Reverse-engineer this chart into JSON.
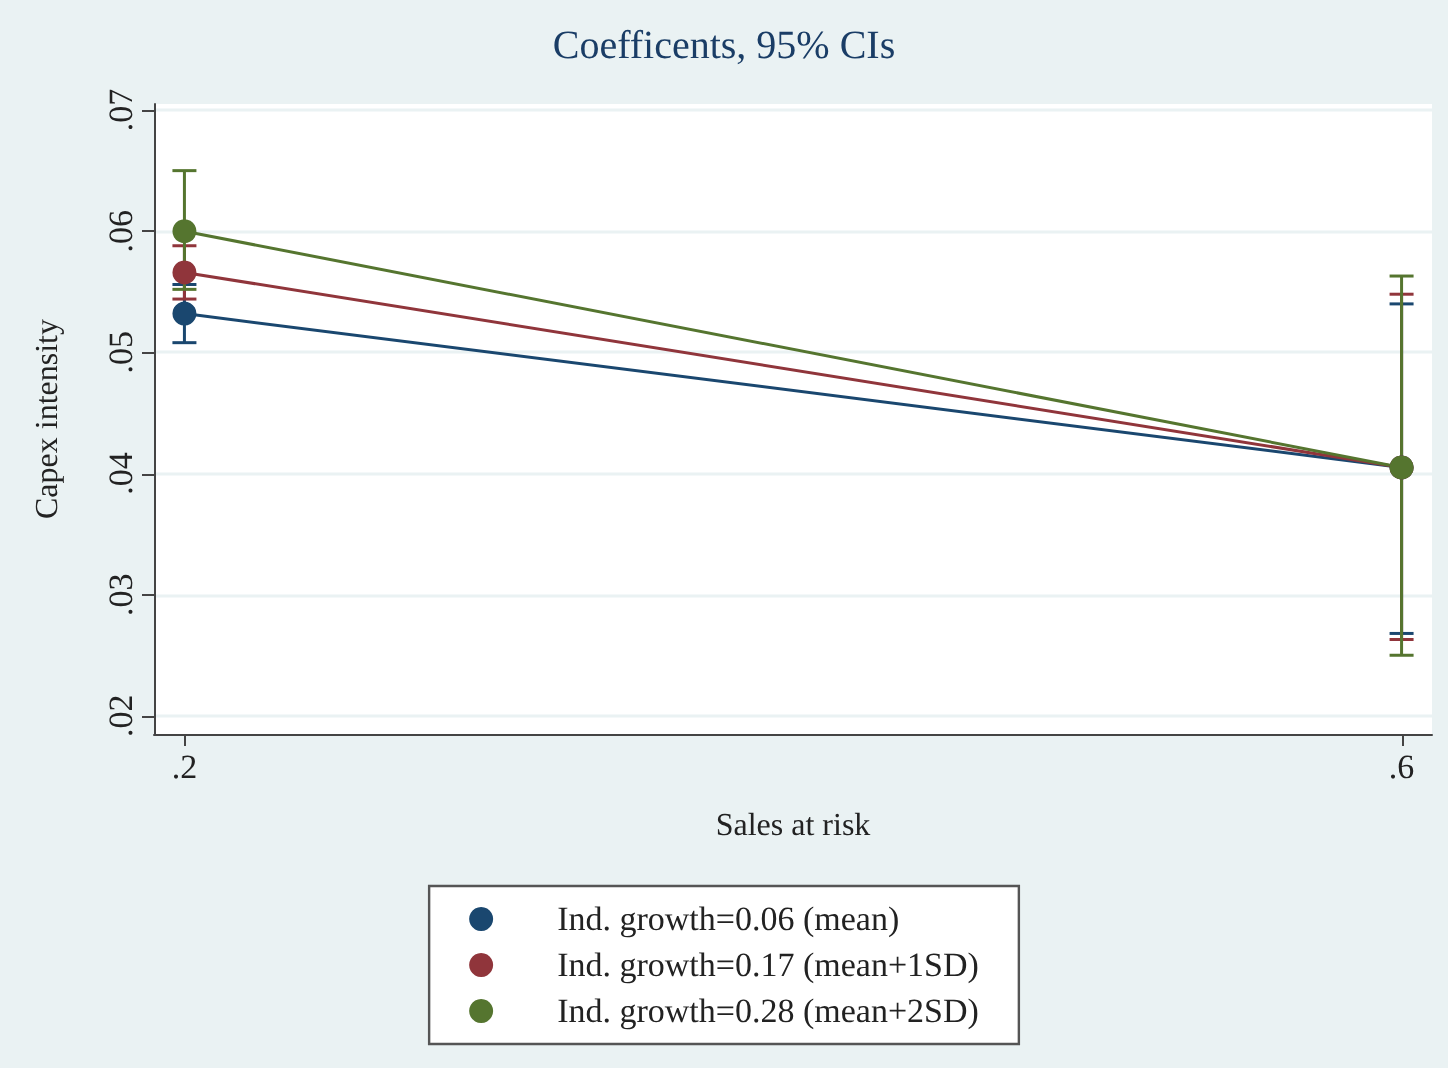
{
  "chart_data": {
    "type": "line",
    "title": "Coefficents, 95% CIs",
    "xlabel": "Sales at risk",
    "ylabel": "Capex intensity",
    "xlim": [
      0.19,
      0.61
    ],
    "xticks": [
      {
        "value": 0.2,
        "label": ".2"
      },
      {
        "value": 0.6,
        "label": ".6"
      }
    ],
    "ylim": [
      0.0185,
      0.0705
    ],
    "yticks": [
      {
        "value": 0.02,
        "label": ".02"
      },
      {
        "value": 0.03,
        "label": ".03"
      },
      {
        "value": 0.04,
        "label": ".04"
      },
      {
        "value": 0.05,
        "label": ".05"
      },
      {
        "value": 0.06,
        "label": ".06"
      },
      {
        "value": 0.07,
        "label": ".07"
      }
    ],
    "x": [
      0.2,
      0.6
    ],
    "series": [
      {
        "name": "Ind. growth=0.06 (mean)",
        "color": "#1a476f",
        "values": [
          0.0532,
          0.0405
        ],
        "errors": [
          [
            0.0508,
            0.0556
          ],
          [
            0.0268,
            0.054
          ]
        ]
      },
      {
        "name": "Ind. growth=0.17 (mean+1SD)",
        "color": "#90353b",
        "values": [
          0.0566,
          0.0405
        ],
        "errors": [
          [
            0.0544,
            0.0588
          ],
          [
            0.0263,
            0.0548
          ]
        ]
      },
      {
        "name": "Ind. growth=0.28 (mean+2SD)",
        "color": "#55752f",
        "values": [
          0.06,
          0.0405
        ],
        "errors": [
          [
            0.0552,
            0.065
          ],
          [
            0.025,
            0.0563
          ]
        ]
      }
    ],
    "marker": "circle",
    "line_style": "solid",
    "grid": "y",
    "legend": "bottom"
  }
}
